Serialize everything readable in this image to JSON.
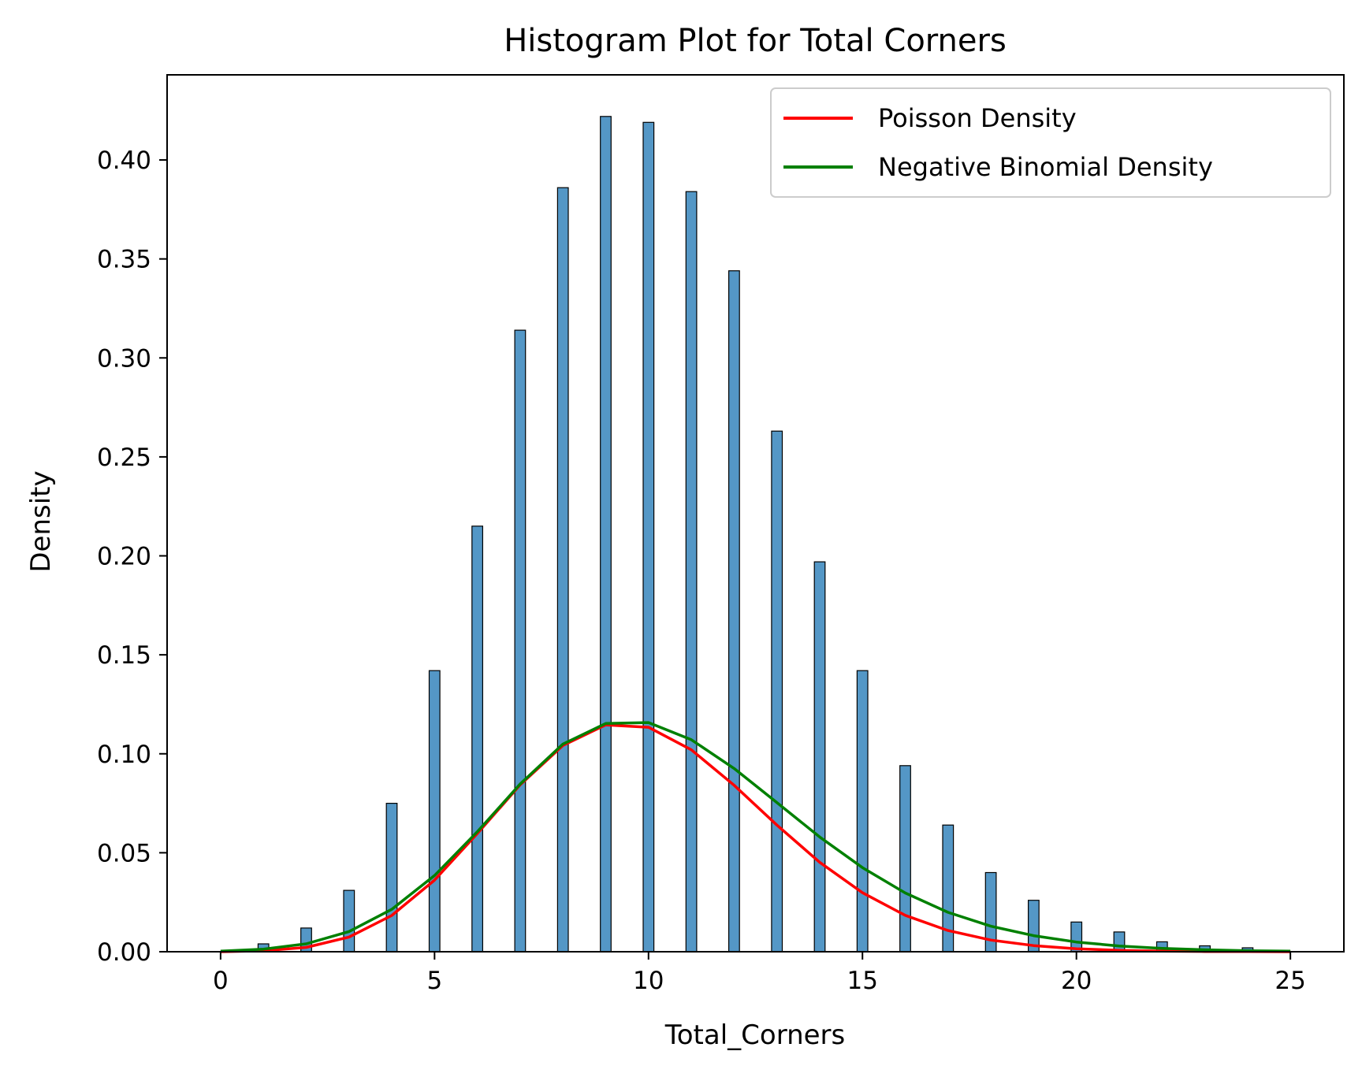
{
  "chart_data": {
    "type": "bar",
    "title": "Histogram Plot for Total Corners",
    "xlabel": "Total_Corners",
    "ylabel": "Density",
    "xlim": [
      -1.25,
      26.25
    ],
    "ylim": [
      0,
      0.443
    ],
    "grid": false,
    "legend_position": "top-right",
    "x_ticks": [
      0,
      5,
      10,
      15,
      20,
      25
    ],
    "x_tick_labels": [
      "0",
      "5",
      "10",
      "15",
      "20",
      "25"
    ],
    "y_ticks": [
      0.0,
      0.05,
      0.1,
      0.15,
      0.2,
      0.25,
      0.3,
      0.35,
      0.4
    ],
    "y_tick_labels": [
      "0.00",
      "0.05",
      "0.10",
      "0.15",
      "0.20",
      "0.25",
      "0.30",
      "0.35",
      "0.40"
    ],
    "histogram": {
      "color": "#5497c6",
      "edge_color": "#000000",
      "bin_width": 0.25,
      "x": [
        1,
        2,
        3,
        4,
        5,
        6,
        7,
        8,
        9,
        10,
        11,
        12,
        13,
        14,
        15,
        16,
        17,
        18,
        19,
        20,
        21,
        22,
        23,
        24
      ],
      "values": [
        0.004,
        0.012,
        0.031,
        0.075,
        0.142,
        0.215,
        0.314,
        0.386,
        0.422,
        0.419,
        0.384,
        0.344,
        0.263,
        0.197,
        0.142,
        0.094,
        0.064,
        0.04,
        0.026,
        0.015,
        0.01,
        0.005,
        0.003,
        0.002
      ]
    },
    "series": [
      {
        "name": "Poisson Density",
        "color": "#ff0000",
        "x": [
          0,
          1,
          2,
          3,
          4,
          5,
          6,
          7,
          8,
          9,
          10,
          11,
          12,
          13,
          14,
          15,
          16,
          17,
          18,
          19,
          20,
          21,
          22,
          23,
          24,
          25
        ],
        "values": [
          0.0,
          0.0005,
          0.0022,
          0.0074,
          0.0183,
          0.0362,
          0.0597,
          0.0843,
          0.1042,
          0.1146,
          0.1134,
          0.102,
          0.0841,
          0.064,
          0.0452,
          0.0298,
          0.0184,
          0.0107,
          0.0059,
          0.0031,
          0.0015,
          0.0007,
          0.0003,
          0.0001,
          0.0001,
          0.0
        ]
      },
      {
        "name": "Negative Binomial Density",
        "color": "#008000",
        "x": [
          0,
          1,
          2,
          3,
          4,
          5,
          6,
          7,
          8,
          9,
          10,
          11,
          12,
          13,
          14,
          15,
          16,
          17,
          18,
          19,
          20,
          21,
          22,
          23,
          24,
          25
        ],
        "values": [
          0.0003,
          0.0013,
          0.004,
          0.0102,
          0.0214,
          0.0385,
          0.0606,
          0.0847,
          0.1049,
          0.1153,
          0.1158,
          0.1071,
          0.0926,
          0.0754,
          0.058,
          0.0425,
          0.0297,
          0.0199,
          0.0129,
          0.0081,
          0.0049,
          0.0029,
          0.0017,
          0.001,
          0.0005,
          0.0003
        ]
      }
    ]
  }
}
